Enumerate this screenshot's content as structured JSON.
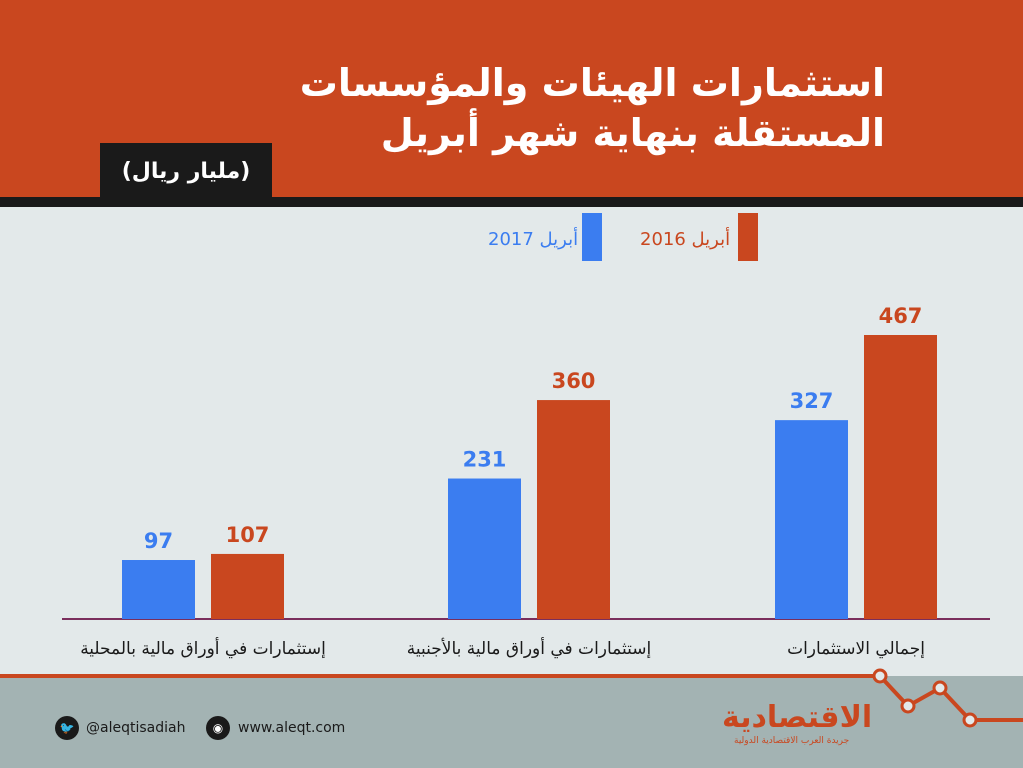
{
  "header": {
    "title_line1": "استثمارات الهيئات والمؤسسات",
    "title_line2": "المستقلة بنهاية شهر أبريل",
    "unit": "(مليار ريال)"
  },
  "footer": {
    "twitter": "@aleqtisadiah",
    "website": "www.aleqt.com",
    "logo": "الاقتصادية",
    "logo_sub": "جريدة العرب الاقتصادية الدولية"
  },
  "colors": {
    "header": "#c9471f",
    "series_2017": "#3b7df0",
    "series_2016": "#c9471f",
    "background": "#e3e9ea"
  },
  "chart_data": {
    "type": "bar",
    "title": "استثمارات الهيئات والمؤسسات المستقلة بنهاية شهر أبريل",
    "ylabel": "(مليار ريال)",
    "categories": [
      "إجمالي الاستثمارات",
      "إستثمارات في أوراق مالية بالأجنبية",
      "إستثمارات في أوراق مالية بالمحلية"
    ],
    "series": [
      {
        "name": "أبريل 2017",
        "color": "#3b7df0",
        "values": [
          327,
          231,
          97
        ]
      },
      {
        "name": "أبريل 2016",
        "color": "#c9471f",
        "values": [
          467,
          360,
          107
        ]
      }
    ],
    "ylim": [
      0,
      467
    ],
    "grid": false,
    "legend": "top"
  }
}
